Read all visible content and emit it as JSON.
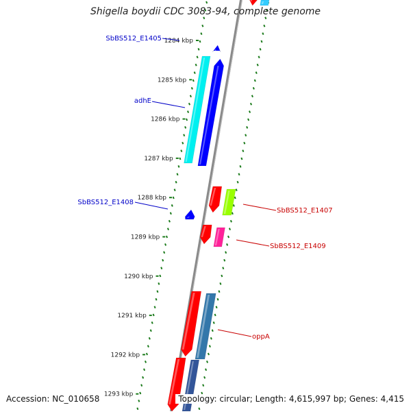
{
  "map": {
    "title": "Shigella boydii CDC 3083-94, complete genome",
    "accession": "Accession: NC_010658",
    "summary": "Topology: circular; Length: 4,615,997 bp; Genes: 4,415",
    "colors": {
      "backbone": "#8a8a8a",
      "tick": "#1a7a1a",
      "forward_label": "#0000c8",
      "reverse_label": "#c80000"
    },
    "scale": {
      "unit": "kbp",
      "ticks": [
        "1284 kbp",
        "1285 kbp",
        "1286 kbp",
        "1287 kbp",
        "1288 kbp",
        "1289 kbp",
        "1290 kbp",
        "1291 kbp",
        "1292 kbp",
        "1293 kbp"
      ]
    },
    "labels": [
      {
        "text": "SbBS512_E1405",
        "strand": "forward"
      },
      {
        "text": "adhE",
        "strand": "forward"
      },
      {
        "text": "SbBS512_E1408",
        "strand": "forward"
      },
      {
        "text": "SbBS512_E1407",
        "strand": "reverse"
      },
      {
        "text": "SbBS512_E1409",
        "strand": "reverse"
      },
      {
        "text": "oppA",
        "strand": "reverse"
      }
    ],
    "features": [
      {
        "name": "forward-top-small",
        "strand": "forward",
        "ring": "cog",
        "color": "#00e0ff"
      },
      {
        "name": "forward-top-small-gene",
        "strand": "forward",
        "ring": "gene",
        "color": "#0000ff"
      },
      {
        "name": "adhE-cog",
        "strand": "forward",
        "ring": "cog",
        "color": "#00f0f0"
      },
      {
        "name": "adhE-gene",
        "strand": "forward",
        "ring": "gene",
        "color": "#0000ff"
      },
      {
        "name": "SbBS512_E1408-gene",
        "strand": "forward",
        "ring": "gene",
        "color": "#0000ff"
      },
      {
        "name": "E1405-marker",
        "strand": "forward",
        "ring": "gene",
        "color": "#0000ff"
      },
      {
        "name": "reverse-top-gene",
        "strand": "reverse",
        "ring": "gene",
        "color": "#ff0000"
      },
      {
        "name": "reverse-top-cog",
        "strand": "reverse",
        "ring": "cog",
        "color": "#33ccff"
      },
      {
        "name": "SbBS512_E1407-gene",
        "strand": "reverse",
        "ring": "gene",
        "color": "#ff0000"
      },
      {
        "name": "SbBS512_E1407-cog",
        "strand": "reverse",
        "ring": "cog",
        "color": "#99ff00"
      },
      {
        "name": "SbBS512_E1409-gene",
        "strand": "reverse",
        "ring": "gene",
        "color": "#ff0000"
      },
      {
        "name": "SbBS512_E1409-cog",
        "strand": "reverse",
        "ring": "cog",
        "color": "#ff2299"
      },
      {
        "name": "oppA-gene",
        "strand": "reverse",
        "ring": "gene",
        "color": "#ff0000"
      },
      {
        "name": "oppA-cog",
        "strand": "reverse",
        "ring": "cog",
        "color": "#3377aa"
      },
      {
        "name": "lower-gene",
        "strand": "reverse",
        "ring": "gene",
        "color": "#ff0000"
      },
      {
        "name": "lower-cog",
        "strand": "reverse",
        "ring": "cog",
        "color": "#335599"
      }
    ]
  }
}
